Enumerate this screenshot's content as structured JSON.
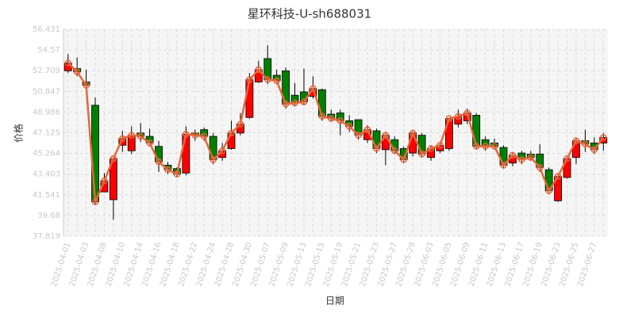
{
  "chart_data": {
    "type": "candlestick",
    "title": "星环科技-U-sh688031",
    "x_label": "日期",
    "y_label": "价格",
    "categories": [
      "2025-04-01",
      null,
      "2025-04-03",
      null,
      "2025-04-08",
      null,
      "2025-04-10",
      null,
      "2025-04-14",
      null,
      "2025-04-16",
      null,
      "2025-04-18",
      null,
      "2025-04-22",
      null,
      "2025-04-24",
      null,
      "2025-04-28",
      null,
      "2025-04-30",
      null,
      "2025-05-07",
      null,
      "2025-05-09",
      null,
      "2025-05-13",
      null,
      "2025-05-15",
      null,
      "2025-05-19",
      null,
      "2025-05-21",
      null,
      "2025-05-23",
      null,
      "2025-05-27",
      null,
      "2025-05-29",
      null,
      "2025-06-03",
      null,
      "2025-06-05",
      null,
      "2025-06-09",
      null,
      "2025-06-11",
      null,
      "2025-06-13",
      null,
      "2025-06-17",
      null,
      "2025-06-19",
      null,
      "2025-06-23",
      null,
      "2025-06-25",
      null,
      "2025-06-27",
      null
    ],
    "open": [
      52.7,
      52.9,
      51.7,
      49.6,
      41.8,
      41.1,
      46.0,
      45.5,
      47.1,
      46.8,
      45.9,
      44.2,
      43.9,
      43.5,
      47.1,
      47.4,
      46.8,
      44.9,
      45.7,
      47.1,
      48.5,
      51.7,
      53.8,
      52.3,
      52.7,
      50.5,
      50.8,
      50.4,
      51.0,
      48.8,
      48.9,
      48.2,
      48.3,
      46.5,
      47.3,
      45.6,
      46.5,
      45.7,
      45.3,
      46.9,
      44.9,
      45.5,
      45.7,
      47.9,
      48.2,
      48.7,
      46.5,
      46.2,
      45.8,
      44.4,
      45.3,
      45.2,
      45.2,
      43.8,
      41.0,
      43.1,
      44.9,
      46.4,
      46.2,
      46.2
    ],
    "close": [
      53.4,
      52.6,
      51.4,
      40.9,
      42.8,
      44.8,
      46.6,
      46.9,
      46.8,
      46.2,
      44.5,
      43.8,
      43.4,
      47.0,
      46.9,
      46.8,
      44.7,
      45.5,
      47.1,
      47.9,
      51.9,
      52.8,
      51.9,
      51.8,
      49.7,
      49.8,
      49.9,
      51.1,
      48.6,
      48.4,
      48.2,
      47.7,
      46.9,
      47.4,
      45.7,
      46.9,
      45.5,
      44.7,
      47.1,
      45.2,
      45.7,
      46.0,
      48.4,
      48.6,
      48.9,
      45.9,
      45.9,
      45.9,
      44.2,
      45.1,
      44.7,
      44.9,
      44.0,
      41.9,
      43.2,
      44.8,
      46.4,
      46.1,
      45.6,
      46.7
    ],
    "high": [
      54.2,
      53.9,
      52.8,
      50.3,
      43.5,
      44.9,
      47.3,
      47.7,
      48.0,
      47.5,
      46.4,
      44.5,
      44.0,
      47.7,
      47.4,
      47.6,
      47.1,
      46.2,
      48.2,
      48.9,
      52.5,
      53.6,
      55.0,
      52.8,
      53.0,
      51.6,
      52.9,
      52.2,
      51.1,
      49.2,
      49.2,
      48.7,
      48.3,
      47.8,
      47.5,
      47.1,
      46.8,
      45.9,
      47.3,
      47.1,
      46.0,
      46.3,
      48.5,
      49.2,
      49.3,
      48.9,
      46.8,
      46.6,
      46.0,
      45.4,
      45.5,
      45.5,
      46.1,
      44.0,
      43.4,
      44.9,
      46.6,
      47.4,
      46.7,
      47.1
    ],
    "low": [
      52.5,
      52.2,
      50.7,
      40.7,
      41.8,
      39.3,
      45.4,
      45.2,
      46.3,
      45.9,
      43.6,
      43.4,
      43.2,
      43.3,
      46.4,
      46.4,
      44.3,
      44.6,
      45.6,
      46.9,
      48.4,
      51.6,
      51.5,
      51.5,
      49.3,
      49.5,
      49.6,
      50.2,
      48.2,
      48.2,
      46.9,
      47.2,
      46.5,
      46.2,
      45.3,
      44.2,
      45.3,
      44.4,
      45.0,
      44.9,
      44.6,
      45.3,
      45.5,
      47.6,
      47.9,
      45.6,
      45.5,
      45.6,
      43.9,
      44.1,
      44.3,
      44.6,
      43.6,
      41.6,
      40.9,
      43.0,
      44.3,
      45.4,
      45.2,
      45.5
    ],
    "up_color": "#ff0000",
    "down_color": "#008000",
    "line_color": "#e8663a",
    "ylim": [
      37.819,
      56.431
    ],
    "yticks": [
      37.819,
      39.68,
      41.541,
      43.403,
      45.264,
      47.125,
      48.986,
      50.847,
      52.709,
      54.57,
      56.431
    ],
    "grid": true
  }
}
